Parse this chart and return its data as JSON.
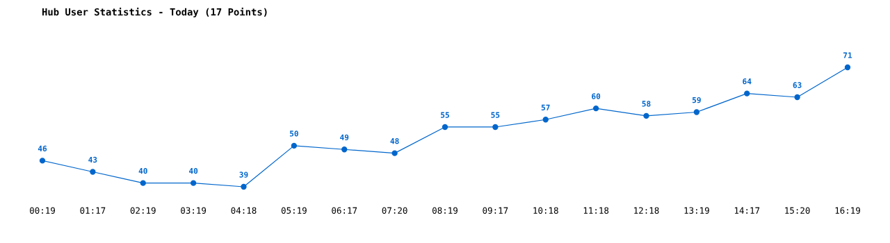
{
  "chart_data": {
    "type": "line",
    "title": "Hub User Statistics - Today (17 Points)",
    "categories": [
      "00:19",
      "01:17",
      "02:19",
      "03:19",
      "04:18",
      "05:19",
      "06:17",
      "07:20",
      "08:19",
      "09:17",
      "10:18",
      "11:18",
      "12:18",
      "13:19",
      "14:17",
      "15:20",
      "16:19"
    ],
    "series": [
      {
        "color": "#0066cc",
        "values": [
          46,
          43,
          40,
          40,
          39,
          50,
          49,
          48,
          55,
          55,
          57,
          60,
          58,
          59,
          64,
          63,
          71
        ]
      }
    ],
    "data_labels": true,
    "marker": "circle",
    "line_style": "solid",
    "grid": false,
    "legend": false,
    "tick_labels": "x"
  }
}
